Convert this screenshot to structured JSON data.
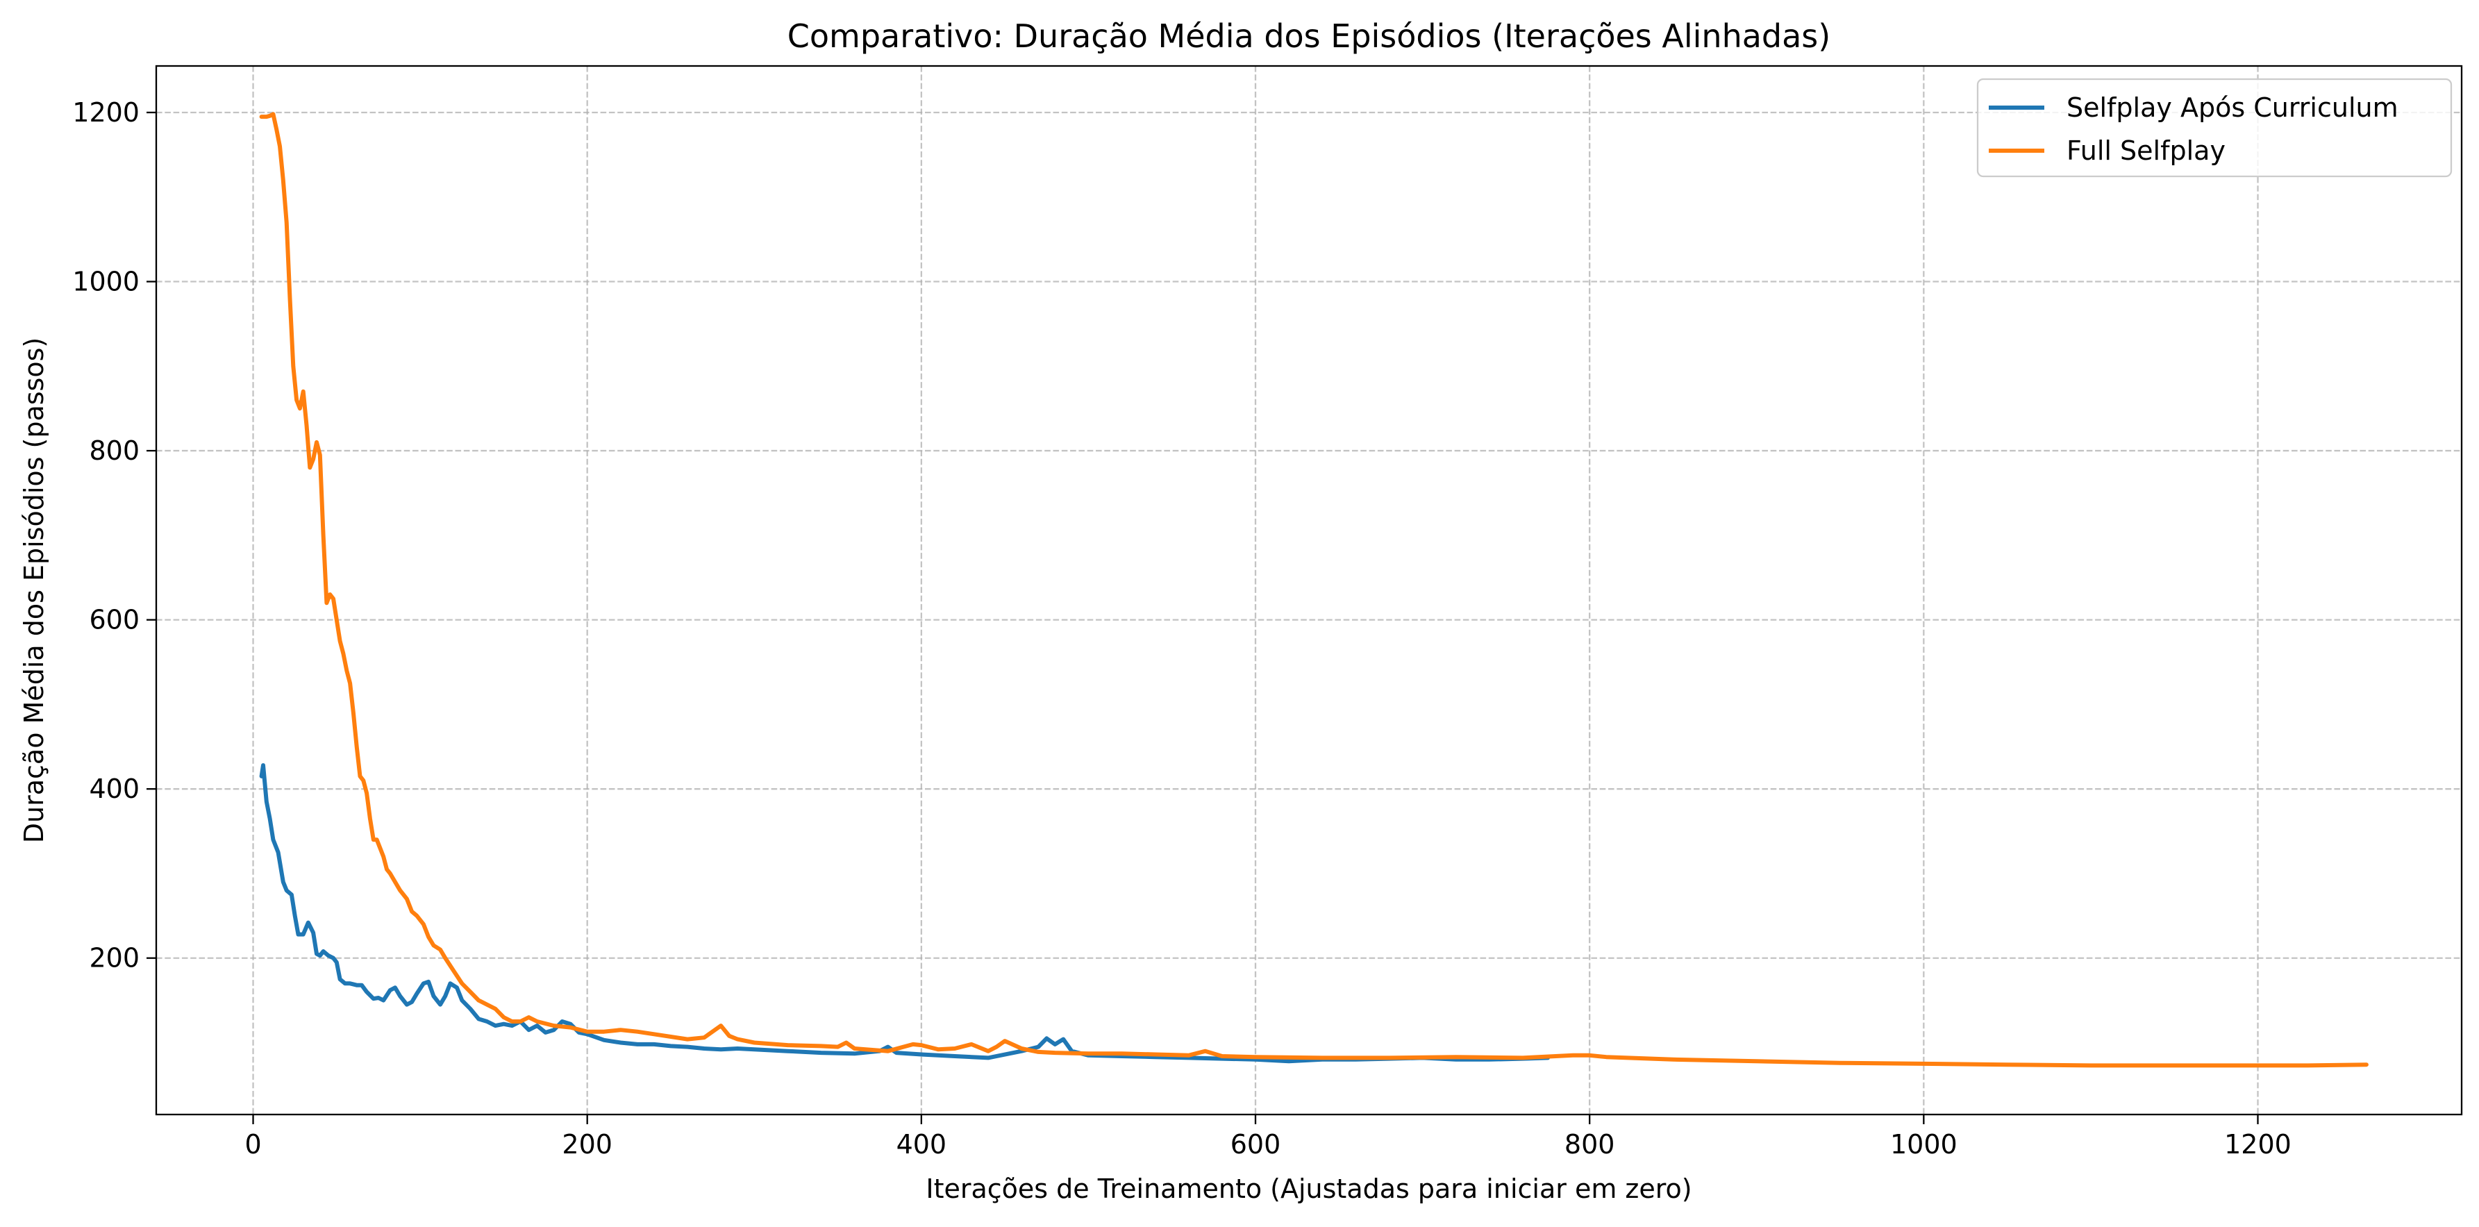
{
  "chart_data": {
    "type": "line",
    "title": "Comparativo: Duração Média dos Episódios (Iterações Alinhadas)",
    "xlabel": "Iterações de Treinamento (Ajustadas para iniciar em zero)",
    "ylabel": "Duração Média dos Episódios (passos)",
    "xlim": [
      -58,
      1322
    ],
    "ylim": [
      15,
      1255
    ],
    "xticks": [
      0,
      200,
      400,
      600,
      800,
      1000,
      1200
    ],
    "yticks": [
      200,
      400,
      600,
      800,
      1000,
      1200
    ],
    "xtick_labels": [
      "0",
      "200",
      "400",
      "600",
      "800",
      "1000",
      "1200"
    ],
    "ytick_labels": [
      "200",
      "400",
      "600",
      "800",
      "1000",
      "1200"
    ],
    "grid": true,
    "legend_position": "top-right",
    "series": [
      {
        "name": "Selfplay Após Curriculum",
        "color": "#1f77b4",
        "x": [
          5,
          6,
          8,
          10,
          12,
          15,
          18,
          20,
          23,
          25,
          27,
          30,
          33,
          36,
          38,
          40,
          42,
          45,
          48,
          50,
          52,
          55,
          58,
          62,
          65,
          68,
          72,
          75,
          78,
          82,
          85,
          88,
          92,
          95,
          98,
          102,
          105,
          108,
          112,
          115,
          118,
          122,
          125,
          130,
          135,
          140,
          145,
          150,
          155,
          160,
          165,
          170,
          175,
          180,
          185,
          190,
          195,
          200,
          210,
          220,
          230,
          240,
          250,
          260,
          270,
          280,
          290,
          300,
          320,
          340,
          360,
          375,
          380,
          385,
          400,
          420,
          440,
          460,
          470,
          475,
          480,
          485,
          490,
          500,
          520,
          540,
          560,
          580,
          600,
          620,
          640,
          660,
          680,
          700,
          720,
          740,
          760,
          775
        ],
        "y": [
          415,
          428,
          385,
          365,
          340,
          325,
          290,
          280,
          275,
          250,
          228,
          228,
          242,
          230,
          205,
          203,
          208,
          203,
          200,
          195,
          175,
          170,
          170,
          168,
          168,
          160,
          152,
          153,
          150,
          162,
          165,
          155,
          145,
          148,
          158,
          170,
          172,
          155,
          145,
          155,
          170,
          165,
          150,
          140,
          128,
          125,
          120,
          122,
          120,
          125,
          115,
          120,
          112,
          115,
          125,
          122,
          112,
          110,
          103,
          100,
          98,
          98,
          96,
          95,
          93,
          92,
          93,
          92,
          90,
          88,
          87,
          90,
          95,
          88,
          86,
          84,
          82,
          90,
          95,
          105,
          98,
          104,
          90,
          85,
          84,
          83,
          82,
          81,
          80,
          78,
          80,
          80,
          81,
          82,
          80,
          80,
          81,
          82
        ]
      },
      {
        "name": "Full Selfplay",
        "color": "#ff7f0e",
        "x": [
          5,
          8,
          10,
          12,
          14,
          16,
          18,
          20,
          22,
          24,
          26,
          28,
          30,
          32,
          34,
          36,
          38,
          40,
          42,
          44,
          46,
          48,
          50,
          52,
          54,
          56,
          58,
          60,
          62,
          64,
          66,
          68,
          70,
          72,
          74,
          76,
          78,
          80,
          82,
          85,
          88,
          92,
          95,
          98,
          102,
          105,
          108,
          112,
          115,
          120,
          125,
          130,
          135,
          140,
          145,
          150,
          155,
          160,
          165,
          170,
          180,
          190,
          200,
          210,
          220,
          230,
          240,
          260,
          270,
          280,
          285,
          290,
          300,
          320,
          340,
          350,
          355,
          360,
          380,
          395,
          400,
          410,
          420,
          430,
          440,
          445,
          450,
          460,
          470,
          480,
          500,
          520,
          540,
          560,
          570,
          580,
          600,
          640,
          680,
          720,
          760,
          790,
          800,
          810,
          850,
          900,
          950,
          1000,
          1050,
          1100,
          1150,
          1200,
          1230,
          1265
        ],
        "y": [
          1195,
          1195,
          1196,
          1198,
          1180,
          1160,
          1120,
          1070,
          980,
          900,
          860,
          850,
          870,
          830,
          780,
          790,
          810,
          795,
          700,
          620,
          630,
          625,
          600,
          575,
          560,
          540,
          525,
          490,
          450,
          415,
          410,
          395,
          365,
          340,
          340,
          330,
          320,
          305,
          300,
          290,
          280,
          270,
          255,
          250,
          240,
          225,
          215,
          210,
          200,
          185,
          170,
          160,
          150,
          145,
          140,
          130,
          125,
          125,
          130,
          125,
          120,
          118,
          113,
          113,
          115,
          113,
          110,
          104,
          106,
          120,
          108,
          104,
          100,
          97,
          96,
          95,
          100,
          93,
          90,
          98,
          97,
          92,
          93,
          98,
          90,
          95,
          102,
          93,
          89,
          88,
          87,
          87,
          86,
          85,
          90,
          84,
          83,
          82,
          82,
          83,
          82,
          85,
          85,
          83,
          80,
          78,
          76,
          75,
          74,
          73,
          73,
          73,
          73,
          74
        ]
      }
    ]
  }
}
